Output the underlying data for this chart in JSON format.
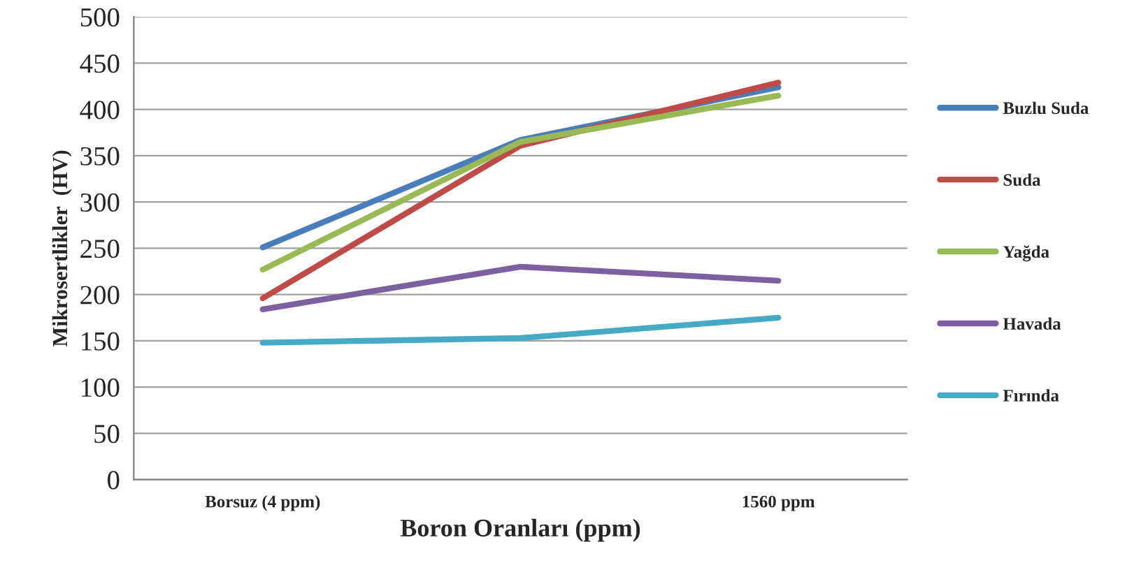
{
  "chart_data": {
    "type": "line",
    "xlabel": "Boron Oranları (ppm)",
    "ylabel": "Mikrosertlikler  (HV)",
    "categories": [
      "Borsuz (4 ppm)",
      null,
      "1560 ppm"
    ],
    "series": [
      {
        "name": "Buzlu Suda",
        "color": "#4a7ebb",
        "values": [
          251,
          367,
          424
        ]
      },
      {
        "name": "Suda",
        "color": "#be4b48",
        "values": [
          196,
          361,
          429
        ]
      },
      {
        "name": "Yağda",
        "color": "#98b954",
        "values": [
          227,
          365,
          415
        ]
      },
      {
        "name": "Havada",
        "color": "#7d60a0",
        "values": [
          184,
          230,
          215
        ]
      },
      {
        "name": "Fırında",
        "color": "#46aac5",
        "values": [
          148,
          153,
          175
        ]
      }
    ],
    "ylim": [
      0,
      500
    ],
    "yticks": [
      0,
      50,
      100,
      150,
      200,
      250,
      300,
      350,
      400,
      450,
      500
    ],
    "grid": "y",
    "legend": "right",
    "marker": "none",
    "line_style": "solid"
  }
}
